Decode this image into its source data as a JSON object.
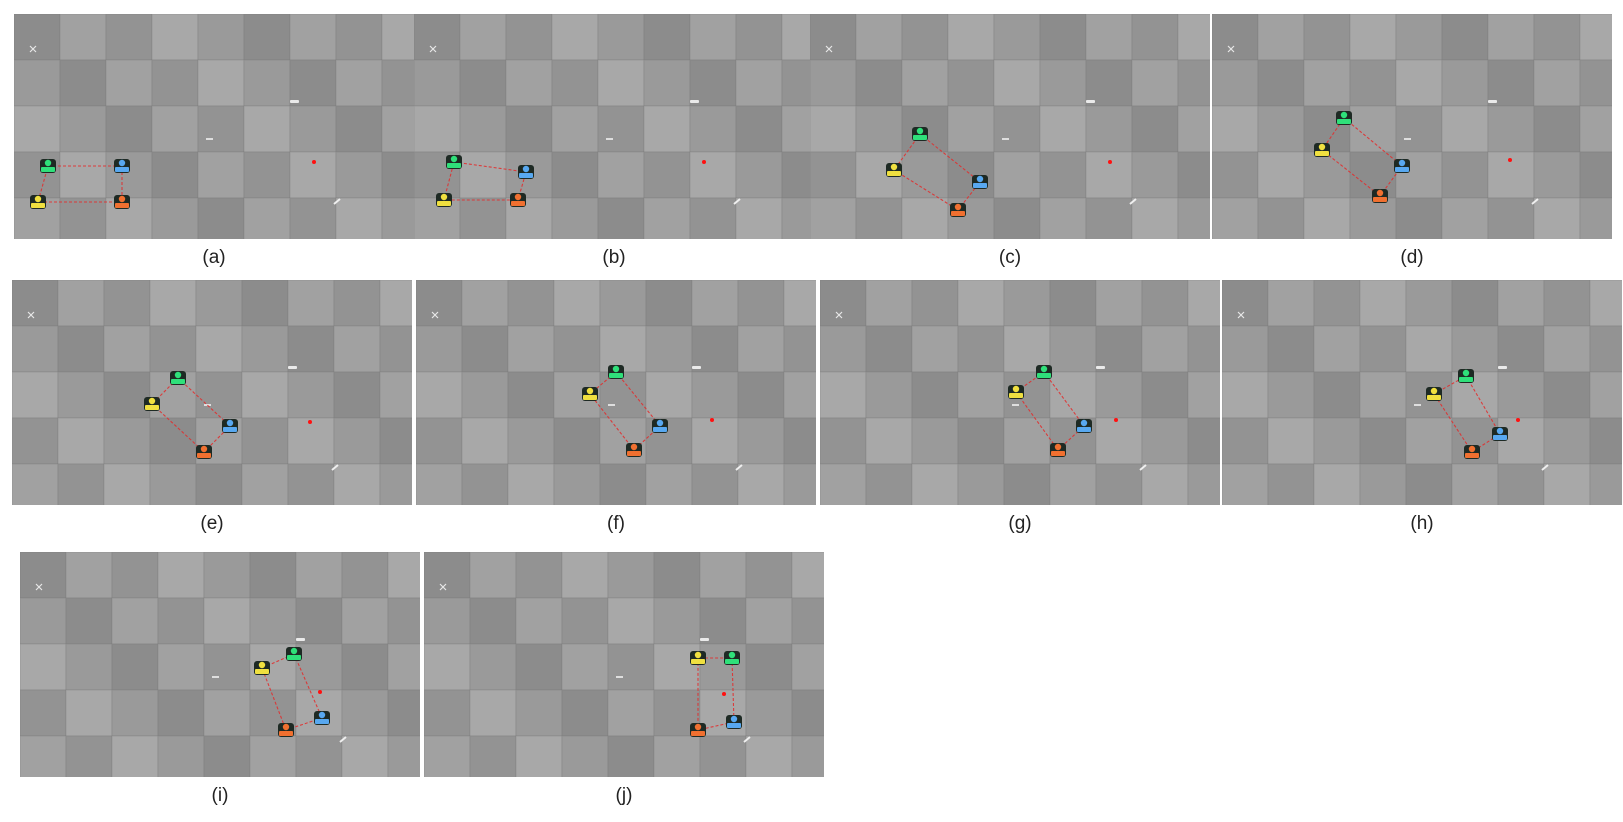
{
  "panels": [
    {
      "label": "(a)",
      "robots": [
        [
          34,
          152,
          "#2fe07a"
        ],
        [
          108,
          152,
          "#58a8f0"
        ],
        [
          24,
          188,
          "#f0e040"
        ],
        [
          108,
          188,
          "#f07030"
        ]
      ],
      "target": [
        300,
        148
      ]
    },
    {
      "label": "(b)",
      "robots": [
        [
          40,
          148,
          "#2fe07a"
        ],
        [
          112,
          158,
          "#58a8f0"
        ],
        [
          30,
          186,
          "#f0e040"
        ],
        [
          104,
          186,
          "#f07030"
        ]
      ],
      "target": [
        290,
        148
      ]
    },
    {
      "label": "(c)",
      "robots": [
        [
          110,
          120,
          "#2fe07a"
        ],
        [
          170,
          168,
          "#58a8f0"
        ],
        [
          84,
          156,
          "#f0e040"
        ],
        [
          148,
          196,
          "#f07030"
        ]
      ],
      "target": [
        300,
        148
      ]
    },
    {
      "label": "(d)",
      "robots": [
        [
          132,
          104,
          "#2fe07a"
        ],
        [
          190,
          152,
          "#58a8f0"
        ],
        [
          110,
          136,
          "#f0e040"
        ],
        [
          168,
          182,
          "#f07030"
        ]
      ],
      "target": [
        298,
        146
      ]
    },
    {
      "label": "(e)",
      "robots": [
        [
          166,
          98,
          "#2fe07a"
        ],
        [
          218,
          146,
          "#58a8f0"
        ],
        [
          140,
          124,
          "#f0e040"
        ],
        [
          192,
          172,
          "#f07030"
        ]
      ],
      "target": [
        298,
        142
      ]
    },
    {
      "label": "(f)",
      "robots": [
        [
          200,
          92,
          "#2fe07a"
        ],
        [
          244,
          146,
          "#58a8f0"
        ],
        [
          174,
          114,
          "#f0e040"
        ],
        [
          218,
          170,
          "#f07030"
        ]
      ],
      "target": [
        296,
        140
      ]
    },
    {
      "label": "(g)",
      "robots": [
        [
          224,
          92,
          "#2fe07a"
        ],
        [
          264,
          146,
          "#58a8f0"
        ],
        [
          196,
          112,
          "#f0e040"
        ],
        [
          238,
          170,
          "#f07030"
        ]
      ],
      "target": [
        296,
        140
      ]
    },
    {
      "label": "(h)",
      "robots": [
        [
          244,
          96,
          "#2fe07a"
        ],
        [
          278,
          154,
          "#58a8f0"
        ],
        [
          212,
          114,
          "#f0e040"
        ],
        [
          250,
          172,
          "#f07030"
        ]
      ],
      "target": [
        296,
        140
      ]
    },
    {
      "label": "(i)",
      "robots": [
        [
          274,
          102,
          "#2fe07a"
        ],
        [
          302,
          166,
          "#58a8f0"
        ],
        [
          242,
          116,
          "#f0e040"
        ],
        [
          266,
          178,
          "#f07030"
        ]
      ],
      "target": [
        300,
        140
      ]
    },
    {
      "label": "(j)",
      "robots": [
        [
          308,
          106,
          "#2fe07a"
        ],
        [
          310,
          170,
          "#58a8f0"
        ],
        [
          274,
          106,
          "#f0e040"
        ],
        [
          274,
          178,
          "#f07030"
        ]
      ],
      "target": [
        300,
        142
      ]
    }
  ],
  "colors": {
    "link": "#e03030",
    "target": "#ff1010",
    "floor": "#9a9a9a"
  }
}
